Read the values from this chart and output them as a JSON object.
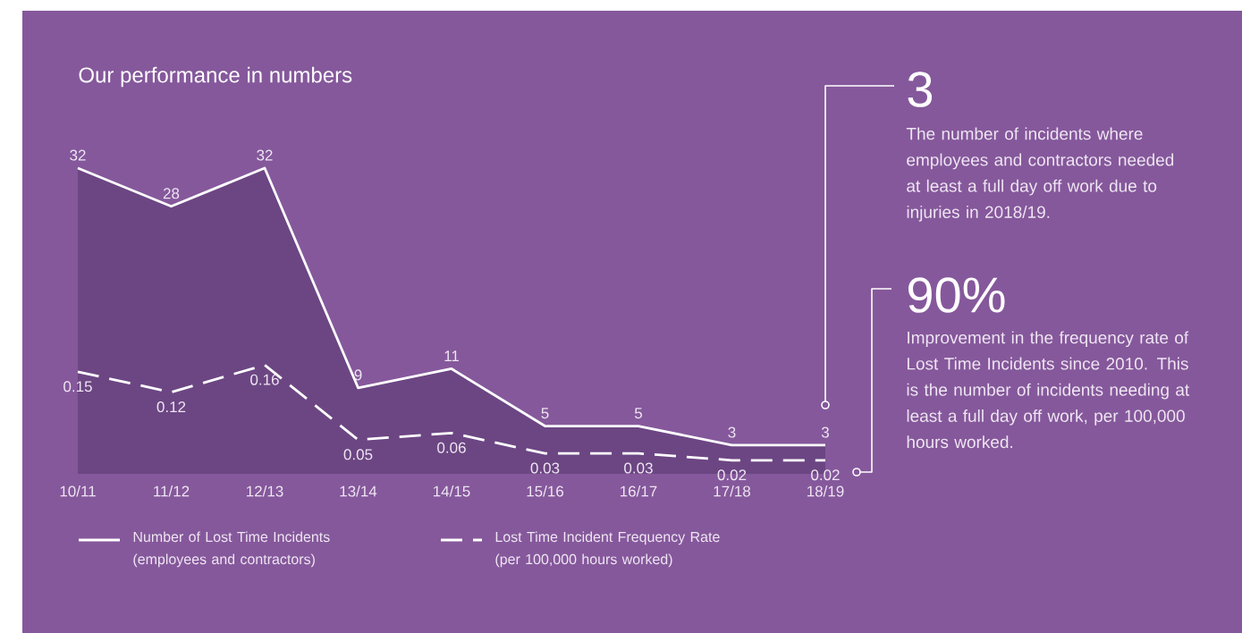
{
  "chart_data": {
    "type": "line",
    "title": "Our performance in numbers",
    "categories": [
      "10/11",
      "11/12",
      "12/13",
      "13/14",
      "14/15",
      "15/16",
      "16/17",
      "17/18",
      "18/19"
    ],
    "series": [
      {
        "name": "Number of Lost Time Incidents (employees and contractors)",
        "type": "area",
        "color": "#ffffff",
        "line_style": "solid",
        "values": [
          32,
          28,
          32,
          9,
          11,
          5,
          5,
          3,
          3
        ]
      },
      {
        "name": "Lost Time Incident Frequency Rate (per 100,000 hours worked)",
        "axis": "y2",
        "color": "#ffffff",
        "line_style": "dashed",
        "values": [
          0.15,
          0.12,
          0.16,
          0.05,
          0.06,
          0.03,
          0.03,
          0.02,
          0.02
        ]
      }
    ],
    "data_labels": true,
    "tick_labels": "x",
    "grid": false,
    "marker": "none",
    "legend": "bottom",
    "annotations": [
      "3",
      "The number of incidents where employees and contractors needed at least a full day off work due to injuries in 2018/19.",
      "90%",
      "Improvement in the frequency rate of Lost Time Incidents since 2010. This is the number of incidents needing at least a full day off work, per 100,000 hours worked."
    ]
  }
}
